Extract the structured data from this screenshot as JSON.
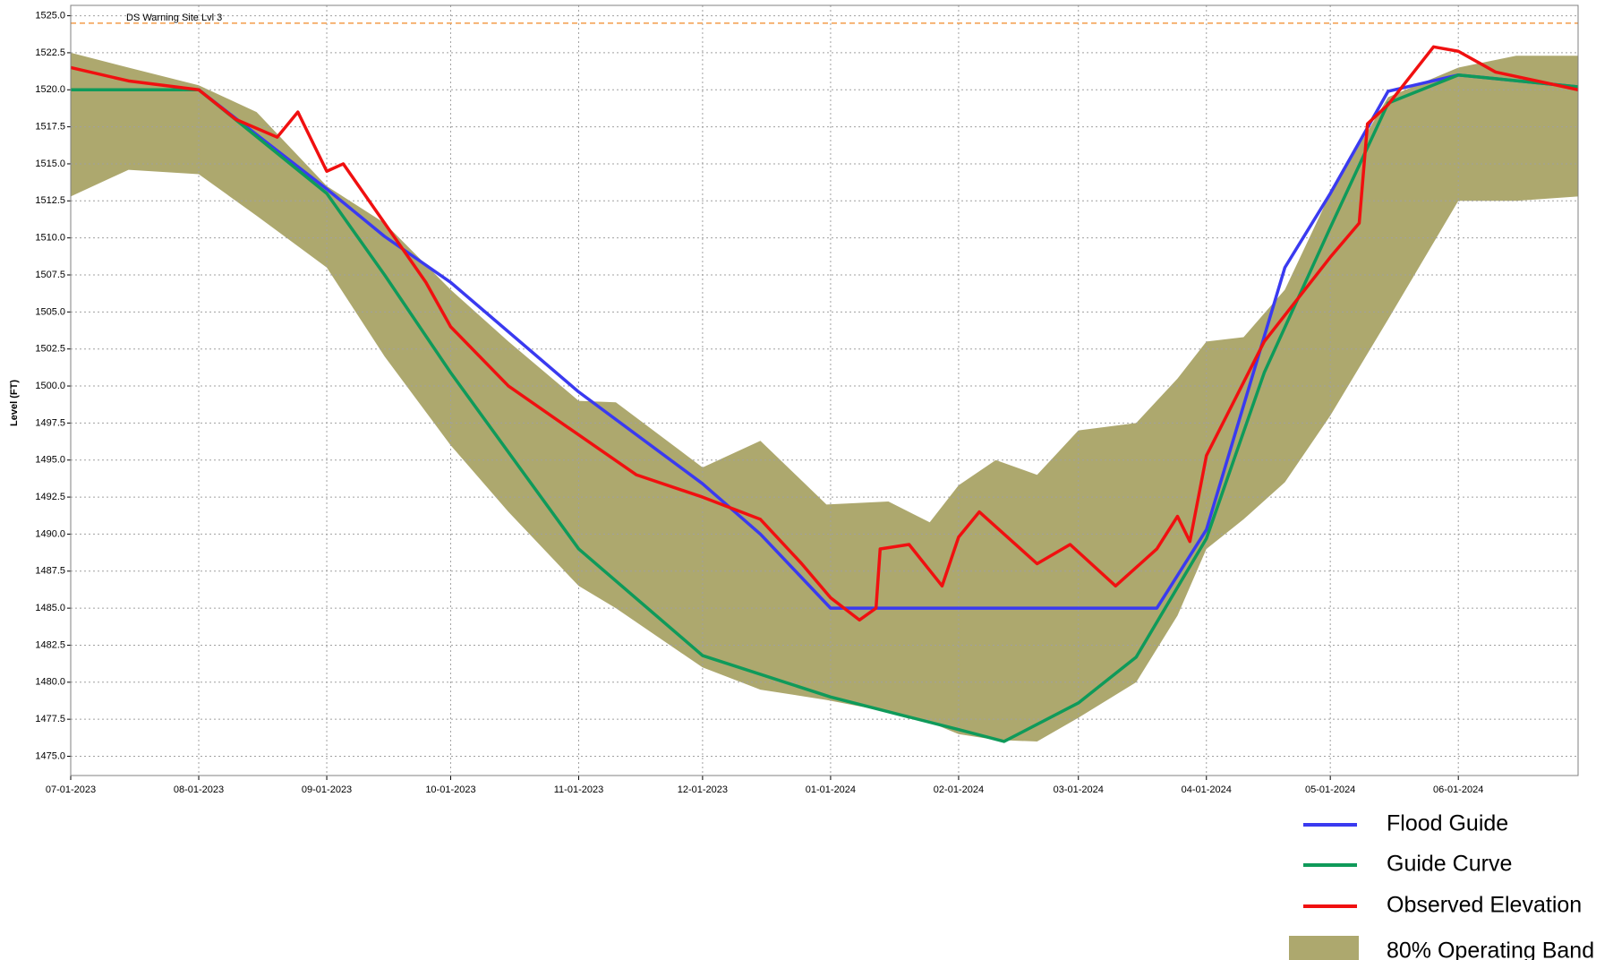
{
  "chart_data": {
    "type": "line",
    "y_label": "Level (FT)",
    "xlim": [
      "2023-07-01",
      "2024-06-30"
    ],
    "xticks": [
      {
        "value": "2023-07-01",
        "label": "07-01-2023"
      },
      {
        "value": "2023-08-01",
        "label": "08-01-2023"
      },
      {
        "value": "2023-09-01",
        "label": "09-01-2023"
      },
      {
        "value": "2023-10-01",
        "label": "10-01-2023"
      },
      {
        "value": "2023-11-01",
        "label": "11-01-2023"
      },
      {
        "value": "2023-12-01",
        "label": "12-01-2023"
      },
      {
        "value": "2024-01-01",
        "label": "01-01-2024"
      },
      {
        "value": "2024-02-01",
        "label": "02-01-2024"
      },
      {
        "value": "2024-03-01",
        "label": "03-01-2024"
      },
      {
        "value": "2024-04-01",
        "label": "04-01-2024"
      },
      {
        "value": "2024-05-01",
        "label": "05-01-2024"
      },
      {
        "value": "2024-06-01",
        "label": "06-01-2024"
      }
    ],
    "ylim": [
      1473.7,
      1525.7
    ],
    "yticks": [
      {
        "value": 1475,
        "label": "1475.0"
      },
      {
        "value": 1477.5,
        "label": "1477.5"
      },
      {
        "value": 1480,
        "label": "1480.0"
      },
      {
        "value": 1482.5,
        "label": "1482.5"
      },
      {
        "value": 1485,
        "label": "1485.0"
      },
      {
        "value": 1487.5,
        "label": "1487.5"
      },
      {
        "value": 1490,
        "label": "1490.0"
      },
      {
        "value": 1492.5,
        "label": "1492.5"
      },
      {
        "value": 1495,
        "label": "1495.0"
      },
      {
        "value": 1497.5,
        "label": "1497.5"
      },
      {
        "value": 1500,
        "label": "1500.0"
      },
      {
        "value": 1502.5,
        "label": "1502.5"
      },
      {
        "value": 1505,
        "label": "1505.0"
      },
      {
        "value": 1507.5,
        "label": "1507.5"
      },
      {
        "value": 1510,
        "label": "1510.0"
      },
      {
        "value": 1512.5,
        "label": "1512.5"
      },
      {
        "value": 1515,
        "label": "1515.0"
      },
      {
        "value": 1517.5,
        "label": "1517.5"
      },
      {
        "value": 1520,
        "label": "1520.0"
      },
      {
        "value": 1522.5,
        "label": "1522.5"
      },
      {
        "value": 1525,
        "label": "1525.0"
      }
    ],
    "grid": true,
    "reference_line": {
      "text": "DS Warning Site Lvl 3",
      "value": 1524.5,
      "color": "#f39c4a"
    },
    "band": {
      "name": "80% Operating Band",
      "color": "#ada86e",
      "x": [
        "2023-07-01",
        "2023-07-15",
        "2023-08-01",
        "2023-08-15",
        "2023-09-01",
        "2023-09-15",
        "2023-10-01",
        "2023-10-15",
        "2023-11-01",
        "2023-11-10",
        "2023-12-01",
        "2023-12-15",
        "2023-12-31",
        "2024-01-15",
        "2024-01-25",
        "2024-02-01",
        "2024-02-10",
        "2024-02-20",
        "2024-03-01",
        "2024-03-15",
        "2024-03-25",
        "2024-04-01",
        "2024-04-10",
        "2024-04-20",
        "2024-05-01",
        "2024-05-15",
        "2024-06-01",
        "2024-06-15",
        "2024-06-30"
      ],
      "upper": [
        1522.5,
        1521.5,
        1520.3,
        1518.5,
        1513.5,
        1511,
        1506.5,
        1503,
        1499,
        1498.9,
        1494.5,
        1496.3,
        1492,
        1492.2,
        1490.8,
        1493.3,
        1495,
        1494,
        1497,
        1497.5,
        1500.5,
        1503,
        1503.3,
        1506.5,
        1513,
        1519.5,
        1521.5,
        1522.3,
        1522.3
      ],
      "lower": [
        1512.8,
        1514.6,
        1514.3,
        1511.5,
        1508,
        1502,
        1496,
        1491.5,
        1486.5,
        1485,
        1481,
        1479.5,
        1478.8,
        1478,
        1477.3,
        1476.5,
        1476.1,
        1476,
        1477.6,
        1480,
        1484.5,
        1489,
        1491,
        1493.5,
        1498,
        1504.5,
        1512.5,
        1512.5,
        1512.8
      ]
    },
    "series": [
      {
        "name": "Flood Guide",
        "color": "#3a3af0",
        "x": [
          "2023-07-01",
          "2023-08-01",
          "2023-09-01",
          "2023-09-15",
          "2023-10-01",
          "2023-11-01",
          "2023-12-01",
          "2023-12-15",
          "2024-01-01",
          "2024-03-20",
          "2024-04-01",
          "2024-04-20",
          "2024-05-01",
          "2024-05-15",
          "2024-06-01",
          "2024-06-30"
        ],
        "values": [
          1520,
          1520,
          1513.3,
          1510.1,
          1507,
          1499.6,
          1493.4,
          1490,
          1485,
          1485,
          1490.3,
          1508,
          1513,
          1519.9,
          1521,
          1520.2
        ]
      },
      {
        "name": "Guide Curve",
        "color": "#0f9a5a",
        "x": [
          "2023-07-01",
          "2023-08-01",
          "2023-09-01",
          "2023-09-15",
          "2023-10-01",
          "2023-11-01",
          "2023-12-01",
          "2024-01-01",
          "2024-02-01",
          "2024-02-12",
          "2024-03-01",
          "2024-03-15",
          "2024-04-01",
          "2024-04-15",
          "2024-05-01",
          "2024-05-15",
          "2024-06-01",
          "2024-06-30"
        ],
        "values": [
          1520,
          1520,
          1513,
          1507.5,
          1500.9,
          1489,
          1481.8,
          1479,
          1476.8,
          1476,
          1478.6,
          1481.7,
          1489.7,
          1500.9,
          1510.7,
          1519.1,
          1521,
          1520.2
        ]
      },
      {
        "name": "Observed Elevation",
        "color": "#f01010",
        "x": [
          "2023-07-01",
          "2023-07-15",
          "2023-08-01",
          "2023-08-10",
          "2023-08-20",
          "2023-08-25",
          "2023-09-01",
          "2023-09-05",
          "2023-09-15",
          "2023-09-25",
          "2023-10-01",
          "2023-10-15",
          "2023-11-01",
          "2023-11-15",
          "2023-12-01",
          "2023-12-15",
          "2023-12-25",
          "2024-01-01",
          "2024-01-08",
          "2024-01-12",
          "2024-01-13",
          "2024-01-20",
          "2024-01-28",
          "2024-02-01",
          "2024-02-06",
          "2024-02-20",
          "2024-02-28",
          "2024-03-10",
          "2024-03-20",
          "2024-03-25",
          "2024-03-28",
          "2024-04-01",
          "2024-04-15",
          "2024-05-01",
          "2024-05-08",
          "2024-05-10",
          "2024-05-15",
          "2024-05-26",
          "2024-06-01",
          "2024-06-10",
          "2024-06-30"
        ],
        "values": [
          1521.5,
          1520.6,
          1520,
          1518,
          1516.8,
          1518.5,
          1514.5,
          1515,
          1511,
          1507,
          1504,
          1500,
          1496.7,
          1494,
          1492.5,
          1491,
          1488,
          1485.7,
          1484.2,
          1485,
          1489,
          1489.3,
          1486.5,
          1489.8,
          1491.5,
          1488,
          1489.3,
          1486.5,
          1489,
          1491.2,
          1489.5,
          1495.3,
          1503,
          1508.7,
          1511,
          1517.7,
          1519,
          1522.9,
          1522.6,
          1521.2,
          1520
        ]
      }
    ]
  }
}
